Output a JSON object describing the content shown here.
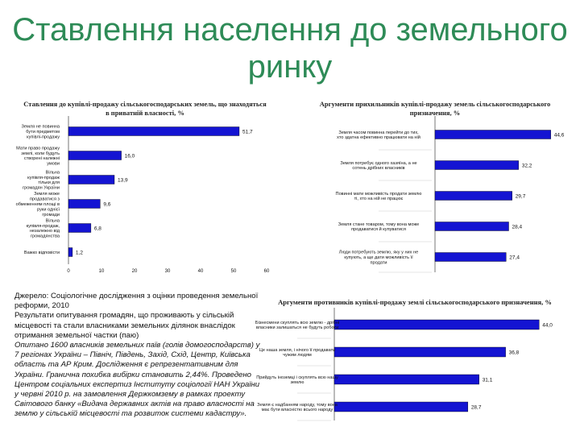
{
  "title": "Ставлення населення до земельного ринку",
  "chart_data": [
    {
      "type": "bar",
      "orientation": "horizontal",
      "title": "Ставлення до купівлі-продажу сільськогосподарських земель, що знаходяться в приватній власності, %",
      "categories": [
        "Земля не повинна бути предметом купівлі-продажу",
        "Мати право продажу землі, коли будуть створені належні умови",
        "Вільна купівля-продаж тільки для громадян України",
        "Земля може продаватися з обмеженням площі в руки однієї громади",
        "Вільна купівля-продаж, незалежно від громадянства",
        "Важко відповісти"
      ],
      "values": [
        51.7,
        16.0,
        13.9,
        9.6,
        6.8,
        1.2
      ],
      "value_labels": [
        "51,7",
        "16,0",
        "13,9",
        "9,6",
        "6,8",
        "1,2"
      ],
      "xlim": [
        0,
        60
      ],
      "ticks": [
        "0",
        "10",
        "20",
        "30",
        "40",
        "50",
        "60"
      ],
      "bar_color": "#1414d2"
    },
    {
      "type": "bar",
      "orientation": "horizontal",
      "title": "Аргументи прихильників купівлі-продажу земель сільськогосподарського призначення, %",
      "categories": [
        "Земля часом повинна перейти до тих, хто здатна ефективно працювати на ній",
        "Земля потребує одного хазяїна, а не сотень дрібних власників",
        "Повинні мати можливість продати землю ті, хто на ній не працює",
        "Земля стане товаром, тому вона може продаватися й купуватися",
        "Люди потребують землю, яку у них не купують, а ще дати можливість її продати"
      ],
      "values": [
        44.6,
        32.2,
        29.7,
        28.4,
        27.4
      ],
      "value_labels": [
        "44,6",
        "32,2",
        "29,7",
        "28,4",
        "27,4"
      ],
      "xlim": [
        0,
        45
      ],
      "bar_color": "#1414d2"
    },
    {
      "type": "bar",
      "orientation": "horizontal",
      "title": "Аргументи противників купівлі-продажу землі сільськогосподарського призначення, %",
      "categories": [
        "Бізнесмени скуплять всю землю - дрібні власники залишаться не будуть роботи",
        "Це наша земля, і нічого її продавати чужим людям",
        "Прийдуть іноземці і скуплять всю нашу землю",
        "Земля є надбанням народу, тому вона має бути власністю всього народу"
      ],
      "values": [
        44.0,
        36.8,
        31.1,
        28.7
      ],
      "value_labels": [
        "44,0",
        "36,8",
        "31,1",
        "28,7"
      ],
      "xlim": [
        0,
        45
      ],
      "bar_color": "#1414d2"
    }
  ],
  "source": {
    "line1": "Джерело: Соціологічне дослідження з оцінки проведення земельної реформи, 2010",
    "line2": "Результати опитування громадян, що проживають у сільській місцевості та стали власниками земельних ділянок внаслідок отримання земельної частки (паю)",
    "line3": "Опитано 1600 власників земельних паїв (голів домогосподарств) у 7 регіонах України – Північ, Південь, Захід, Схід, Центр, Київська область та АР Крим. Дослідження є репрезентативним для України. Гранична похибка вибірки становить 2,44%. Проведено Центром соціальних експертиз Інституту соціології НАН України у червні 2010 р. на замовлення Держкомзему в рамках проекту Світового банку «Видача державних актів на право власності на землю у сільській місцевості та розвиток системи кадастру»."
  }
}
